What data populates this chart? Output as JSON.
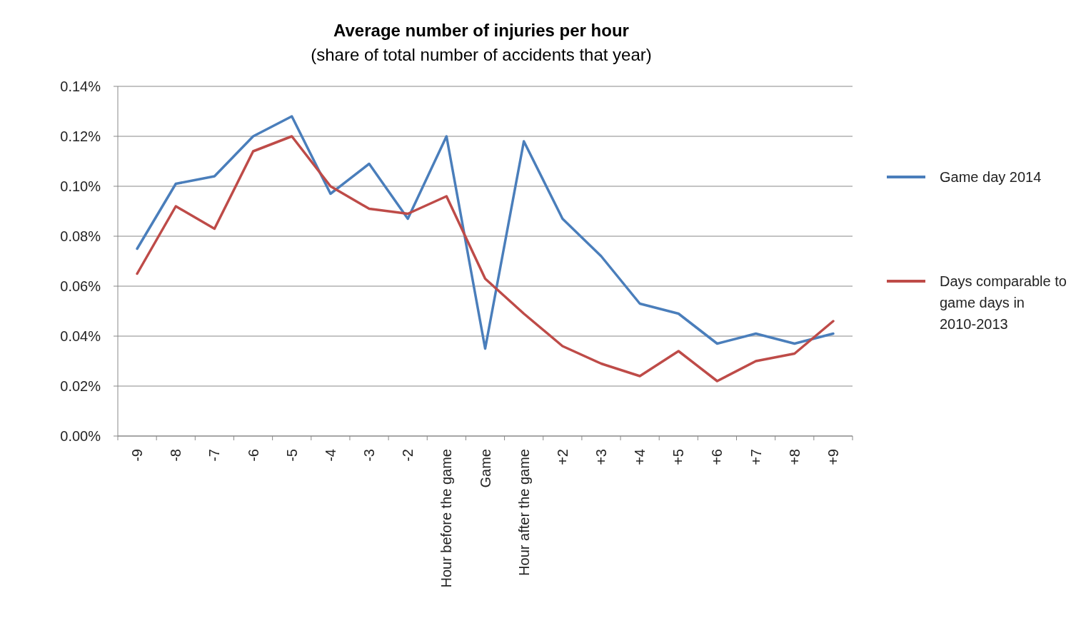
{
  "chart_data": {
    "type": "line",
    "title": "Average number of injuries per hour",
    "subtitle": "(share of total number of accidents that year)",
    "categories": [
      "-9",
      "-8",
      "-7",
      "-6",
      "-5",
      "-4",
      "-3",
      "-2",
      "Hour before the game",
      "Game",
      "Hour after the game",
      "+2",
      "+3",
      "+4",
      "+5",
      "+6",
      "+7",
      "+8",
      "+9"
    ],
    "series": [
      {
        "name": "Game day 2014",
        "color": "#4a7ebb",
        "values": [
          0.075,
          0.101,
          0.104,
          0.12,
          0.128,
          0.097,
          0.109,
          0.087,
          0.12,
          0.035,
          0.118,
          0.087,
          0.072,
          0.053,
          0.049,
          0.037,
          0.041,
          0.037,
          0.041
        ]
      },
      {
        "name": "Days comparable to game days in 2010-2013",
        "color": "#be4b48",
        "values": [
          0.065,
          0.092,
          0.083,
          0.114,
          0.12,
          0.1,
          0.091,
          0.089,
          0.096,
          0.063,
          0.049,
          0.036,
          0.029,
          0.024,
          0.034,
          0.022,
          0.03,
          0.033,
          0.046
        ]
      }
    ],
    "ylim": [
      0,
      0.14
    ],
    "yticks": [
      {
        "value": 0,
        "label": "0.00%"
      },
      {
        "value": 0.02,
        "label": "0.02%"
      },
      {
        "value": 0.04,
        "label": "0.04%"
      },
      {
        "value": 0.06,
        "label": "0.06%"
      },
      {
        "value": 0.08,
        "label": "0.08%"
      },
      {
        "value": 0.1,
        "label": "0.10%"
      },
      {
        "value": 0.12,
        "label": "0.12%"
      },
      {
        "value": 0.14,
        "label": "0.14%"
      }
    ],
    "grid": "y",
    "legend": "right",
    "marker": "none",
    "line_style": "solid"
  }
}
